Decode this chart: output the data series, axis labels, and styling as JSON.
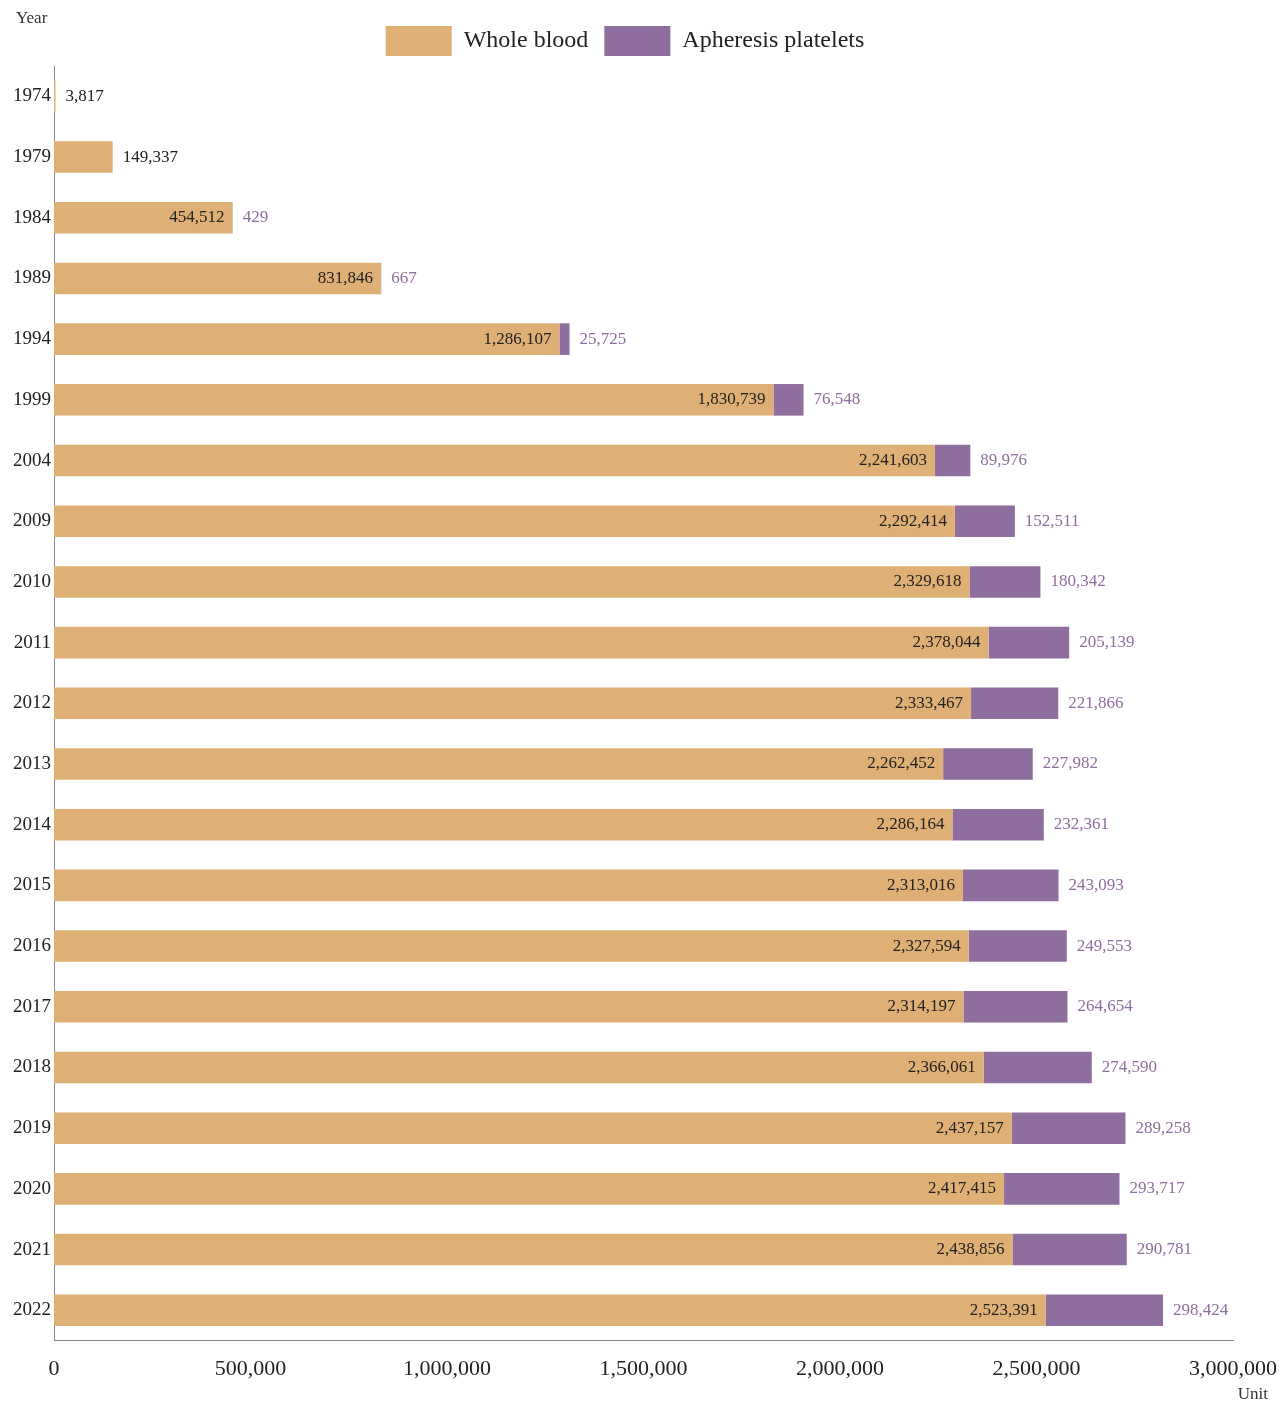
{
  "chart_data": {
    "type": "bar",
    "orientation": "horizontal",
    "stacked": true,
    "ylabel": "Year",
    "xlabel": "Unit",
    "categories": [
      "1974",
      "1979",
      "1984",
      "1989",
      "1994",
      "1999",
      "2004",
      "2009",
      "2010",
      "2011",
      "2012",
      "2013",
      "2014",
      "2015",
      "2016",
      "2017",
      "2018",
      "2019",
      "2020",
      "2021",
      "2022"
    ],
    "series": [
      {
        "name": "Whole blood",
        "color": "#deb075",
        "values": [
          3817,
          149337,
          454512,
          831846,
          1286107,
          1830739,
          2241603,
          2292414,
          2329618,
          2378044,
          2333467,
          2262452,
          2286164,
          2313016,
          2327594,
          2314197,
          2366061,
          2437157,
          2417415,
          2438856,
          2523391
        ],
        "value_labels": [
          "3,817",
          "149,337",
          "454,512",
          "831,846",
          "1,286,107",
          "1,830,739",
          "2,241,603",
          "2,292,414",
          "2,329,618",
          "2,378,044",
          "2,333,467",
          "2,262,452",
          "2,286,164",
          "2,313,016",
          "2,327,594",
          "2,314,197",
          "2,366,061",
          "2,437,157",
          "2,417,415",
          "2,438,856",
          "2,523,391"
        ]
      },
      {
        "name": "Apheresis platelets",
        "color": "#8e6e9e",
        "values": [
          null,
          null,
          429,
          667,
          25725,
          76548,
          89976,
          152511,
          180342,
          205139,
          221866,
          227982,
          232361,
          243093,
          249553,
          264654,
          274590,
          289258,
          293717,
          290781,
          298424
        ],
        "value_labels": [
          null,
          null,
          "429",
          "667",
          "25,725",
          "76,548",
          "89,976",
          "152,511",
          "180,342",
          "205,139",
          "221,866",
          "227,982",
          "232,361",
          "243,093",
          "249,553",
          "264,654",
          "274,590",
          "289,258",
          "293,717",
          "290,781",
          "298,424"
        ]
      }
    ],
    "xlim": [
      0,
      3000000
    ],
    "xticks": [
      0,
      {
        "value": 500000,
        "label": "500,000"
      },
      {
        "value": 1000000,
        "label": "1,000,000"
      },
      {
        "value": 1500000,
        "label": "1,500,000"
      },
      {
        "value": 2000000,
        "label": "2,000,000"
      },
      {
        "value": 2500000,
        "label": "2,500,000"
      },
      {
        "value": 3000000,
        "label": "3,000,000"
      }
    ],
    "grid": false,
    "legend": "top right"
  }
}
